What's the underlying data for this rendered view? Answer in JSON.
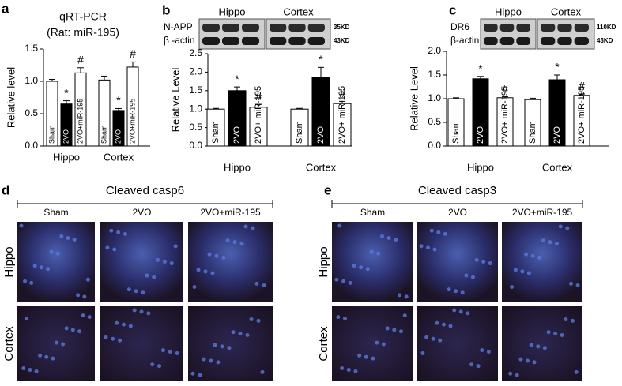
{
  "chart_data": [
    {
      "type": "bar",
      "panel": "a",
      "title": "qRT-PCR",
      "subtitle": "(Rat: miR-195)",
      "y_label": "Relative level",
      "categories": [
        "Hippo",
        "Cortex"
      ],
      "ylim": [
        0,
        1.5
      ],
      "yticks": [
        {
          "value": 0,
          "label": "0.0"
        },
        {
          "value": 0.5,
          "label": "0.5"
        },
        {
          "value": 1,
          "label": "1.0"
        },
        {
          "value": 1.5,
          "label": "1.5"
        }
      ],
      "series": [
        {
          "name": "Sham",
          "color": "#ffffff",
          "values": [
            1.0,
            1.02
          ],
          "errors": [
            0.03,
            0.06
          ],
          "markers": [
            null,
            null
          ]
        },
        {
          "name": "2VO",
          "color": "#000000",
          "values": [
            0.65,
            0.55
          ],
          "errors": [
            0.05,
            0.03
          ],
          "markers": [
            "*",
            "*"
          ]
        },
        {
          "name": "2VO+miR-195",
          "color": "#ffffff",
          "values": [
            1.13,
            1.22
          ],
          "errors": [
            0.08,
            0.08
          ],
          "markers": [
            "#",
            "#"
          ]
        }
      ]
    },
    {
      "type": "bar",
      "panel": "b",
      "y_label": "Relative Level",
      "blot": {
        "groups": [
          "Hippo",
          "Cortex"
        ],
        "rows": [
          {
            "label": "N-APP",
            "size": "35KD"
          },
          {
            "label": "β -actin",
            "size": "43KD"
          }
        ]
      },
      "categories": [
        "Hippo",
        "Cortex"
      ],
      "ylim": [
        0,
        2.5
      ],
      "yticks": [
        {
          "value": 0,
          "label": "0.0"
        },
        {
          "value": 0.5,
          "label": "0.5"
        },
        {
          "value": 1,
          "label": "1.0"
        },
        {
          "value": 1.5,
          "label": "1.5"
        },
        {
          "value": 2,
          "label": "2.0"
        },
        {
          "value": 2.5,
          "label": "2.5"
        }
      ],
      "series": [
        {
          "name": "Sham",
          "color": "#ffffff",
          "values": [
            1.0,
            1.0
          ],
          "errors": [
            0.02,
            0.02
          ],
          "markers": [
            null,
            null
          ]
        },
        {
          "name": "2VO",
          "color": "#000000",
          "values": [
            1.5,
            1.85
          ],
          "errors": [
            0.1,
            0.28
          ],
          "markers": [
            "*",
            "*"
          ]
        },
        {
          "name": "2VO+ miR-195",
          "color": "#ffffff",
          "values": [
            1.05,
            1.15
          ],
          "errors": [
            0.08,
            0.06
          ],
          "markers": [
            "#",
            "#"
          ]
        }
      ]
    },
    {
      "type": "bar",
      "panel": "c",
      "y_label": "Relative Level",
      "blot": {
        "groups": [
          "Hippo",
          "Cortex"
        ],
        "rows": [
          {
            "label": "DR6",
            "size": "110KD"
          },
          {
            "label": "β-actin",
            "size": "43KD"
          }
        ]
      },
      "categories": [
        "Hippo",
        "Cortex"
      ],
      "ylim": [
        0,
        2.0
      ],
      "yticks": [
        {
          "value": 0,
          "label": "0.0"
        },
        {
          "value": 0.5,
          "label": "0.5"
        },
        {
          "value": 1,
          "label": "1.0"
        },
        {
          "value": 1.5,
          "label": "1.5"
        },
        {
          "value": 2,
          "label": "2.0"
        }
      ],
      "series": [
        {
          "name": "Sham",
          "color": "#ffffff",
          "values": [
            1.0,
            0.98
          ],
          "errors": [
            0.02,
            0.03
          ],
          "markers": [
            null,
            null
          ]
        },
        {
          "name": "2VO",
          "color": "#000000",
          "values": [
            1.42,
            1.4
          ],
          "errors": [
            0.05,
            0.1
          ],
          "markers": [
            "*",
            "*"
          ]
        },
        {
          "name": "2VO+ miR-195",
          "color": "#ffffff",
          "values": [
            1.02,
            1.07
          ],
          "errors": [
            0.02,
            0.03
          ],
          "markers": [
            "#",
            "#"
          ]
        }
      ]
    }
  ],
  "image_panels": [
    {
      "panel": "d",
      "title": "Cleaved casp6",
      "columns": [
        "Sham",
        "2VO",
        "2VO+miR-195"
      ],
      "rows": [
        "Hippo",
        "Cortex"
      ]
    },
    {
      "panel": "e",
      "title": "Cleaved casp3",
      "columns": [
        "Sham",
        "2VO",
        "2VO+miR-195"
      ],
      "rows": [
        "Hippo",
        "Cortex"
      ]
    }
  ]
}
